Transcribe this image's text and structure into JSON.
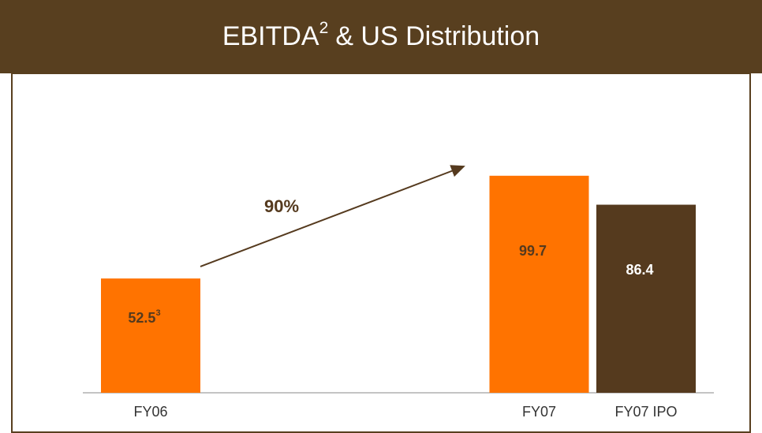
{
  "chart_data": {
    "type": "bar",
    "title": "EBITDA",
    "title_superscript": "2",
    "title_rest": "& US Distribution",
    "categories": [
      "FY06",
      "FY07",
      "FY07 IPO"
    ],
    "values": [
      52.5,
      99.7,
      86.4
    ],
    "value_label_superscripts": [
      "3",
      null,
      null
    ],
    "colors": [
      "#ff7300",
      "#ff7300",
      "#553a1e"
    ],
    "annotation": "90%",
    "ylim": [
      0,
      100
    ]
  }
}
